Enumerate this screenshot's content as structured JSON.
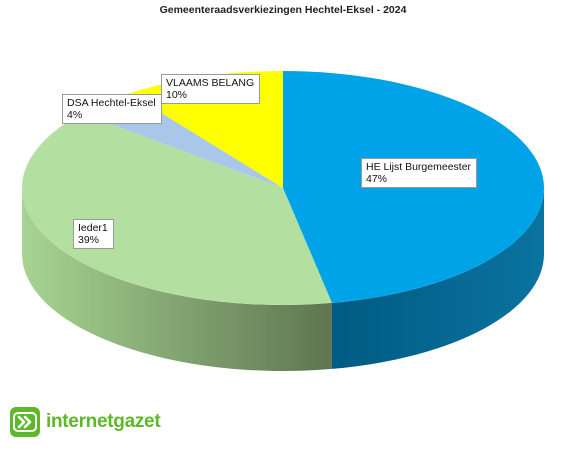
{
  "chart_data": {
    "type": "pie",
    "title": "Gemeenteraadsverkiezingen Hechtel-Eksel - 2024",
    "labels": [
      "HE Lijst Burgemeester",
      "Ieder1",
      "DSA Hechtel-Eksel",
      "VLAAMS BELANG"
    ],
    "values": [
      47,
      39,
      4,
      10
    ],
    "value_labels": [
      "47%",
      "39%",
      "4%",
      "10%"
    ],
    "colors": [
      "#00a2e8",
      "#b3e0a0",
      "#a9c7e8",
      "#ffff00"
    ],
    "side_colors": [
      "#00648f",
      "#7f9a6c",
      "#6f8ca8",
      "#b3b300"
    ],
    "style": "3d-pie",
    "legend": "none"
  },
  "logo": {
    "text": "internetgazet",
    "color": "#5fb829",
    "icon": "double-chevron-icon"
  }
}
